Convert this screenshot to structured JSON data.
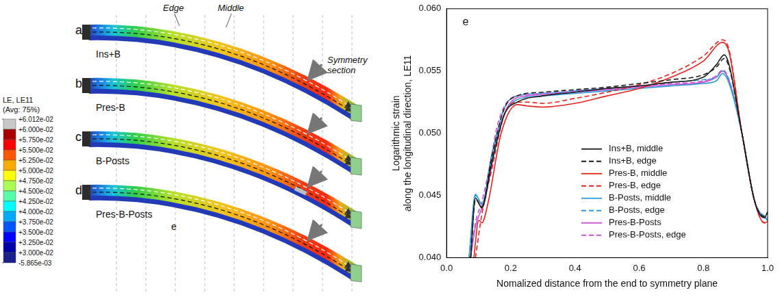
{
  "chart_data": {
    "type": "line",
    "panel_label": "e",
    "xlabel": "Nomalized distance from the end to symmetry plane",
    "ylabel": [
      "Logarithmic strain",
      "along the longitudinal direction, LE11"
    ],
    "xlim": [
      0,
      1
    ],
    "xticks": [
      {
        "value": 0,
        "label": "0.0"
      },
      {
        "value": 0.2,
        "label": "0.2"
      },
      {
        "value": 0.4,
        "label": "0.4"
      },
      {
        "value": 0.6,
        "label": "0.6"
      },
      {
        "value": 0.8,
        "label": "0.8"
      },
      {
        "value": 1,
        "label": "1.0"
      }
    ],
    "ylim": [
      0.04,
      0.06
    ],
    "yticks": [
      {
        "value": 0.04,
        "label": "0.040"
      },
      {
        "value": 0.045,
        "label": "0.045"
      },
      {
        "value": 0.05,
        "label": "0.050"
      },
      {
        "value": 0.055,
        "label": "0.055"
      },
      {
        "value": 0.06,
        "label": "0.060"
      }
    ],
    "grid": false,
    "legend": "bottom",
    "series": [
      {
        "name": "Ins+B, middle",
        "color": "#1a1a1a",
        "line_style": "solid",
        "x": [
          0.075,
          0.09,
          0.11,
          0.14,
          0.18,
          0.22,
          0.3,
          0.4,
          0.5,
          0.6,
          0.7,
          0.8,
          0.84,
          0.865,
          0.88,
          0.92,
          0.96,
          0.99,
          1.0
        ],
        "values": [
          0.04,
          0.0448,
          0.044,
          0.0475,
          0.0515,
          0.0525,
          0.053,
          0.0533,
          0.0536,
          0.0538,
          0.0541,
          0.0545,
          0.0555,
          0.0563,
          0.0555,
          0.05,
          0.0445,
          0.0432,
          0.0437
        ]
      },
      {
        "name": "Ins+B, edge",
        "color": "#1a1a1a",
        "line_style": "dashed",
        "x": [
          0.075,
          0.09,
          0.11,
          0.14,
          0.18,
          0.22,
          0.3,
          0.4,
          0.5,
          0.6,
          0.7,
          0.8,
          0.84,
          0.865,
          0.88,
          0.92,
          0.96,
          0.99,
          1.0
        ],
        "values": [
          0.04,
          0.0447,
          0.0441,
          0.048,
          0.052,
          0.053,
          0.0533,
          0.0535,
          0.0537,
          0.054,
          0.0543,
          0.0547,
          0.0553,
          0.056,
          0.0553,
          0.05,
          0.0445,
          0.0433,
          0.0436
        ]
      },
      {
        "name": "Pres-B, middle",
        "color": "#e3221b",
        "line_style": "solid",
        "x": [
          0.085,
          0.1,
          0.11,
          0.13,
          0.17,
          0.22,
          0.25,
          0.3,
          0.4,
          0.5,
          0.6,
          0.7,
          0.8,
          0.86,
          0.88,
          0.92,
          0.96,
          0.99,
          1.0
        ],
        "values": [
          0.04,
          0.043,
          0.0428,
          0.0445,
          0.05,
          0.0523,
          0.0522,
          0.0521,
          0.0524,
          0.053,
          0.0536,
          0.0545,
          0.0558,
          0.0573,
          0.0565,
          0.05,
          0.0445,
          0.0428,
          0.0429
        ]
      },
      {
        "name": "Pres-B, edge",
        "color": "#e3221b",
        "line_style": "dashed",
        "x": [
          0.09,
          0.11,
          0.14,
          0.18,
          0.22,
          0.25,
          0.3,
          0.4,
          0.5,
          0.6,
          0.7,
          0.8,
          0.86,
          0.88,
          0.92,
          0.96,
          0.99,
          1.0
        ],
        "values": [
          0.04,
          0.0435,
          0.047,
          0.0515,
          0.0525,
          0.0525,
          0.0524,
          0.0528,
          0.0533,
          0.0539,
          0.0548,
          0.0562,
          0.0575,
          0.0567,
          0.05,
          0.0445,
          0.0428,
          0.0429
        ]
      },
      {
        "name": "B-Posts, middle",
        "color": "#2e9bd6",
        "line_style": "solid",
        "x": [
          0.07,
          0.09,
          0.11,
          0.14,
          0.18,
          0.22,
          0.3,
          0.4,
          0.5,
          0.6,
          0.7,
          0.8,
          0.84,
          0.86,
          0.88,
          0.92,
          0.96,
          1.0
        ],
        "values": [
          0.04,
          0.0451,
          0.0443,
          0.0478,
          0.0515,
          0.0527,
          0.053,
          0.0532,
          0.0534,
          0.0536,
          0.0538,
          0.054,
          0.0542,
          0.0548,
          0.054,
          0.05,
          0.0445,
          0.043
        ]
      },
      {
        "name": "B-Posts, edge",
        "color": "#2e9bd6",
        "line_style": "dashed",
        "x": [
          0.07,
          0.09,
          0.11,
          0.14,
          0.18,
          0.22,
          0.3,
          0.4,
          0.5,
          0.6,
          0.7,
          0.8,
          0.84,
          0.86,
          0.88,
          0.92,
          0.96,
          1.0
        ],
        "values": [
          0.04,
          0.045,
          0.0443,
          0.0482,
          0.052,
          0.053,
          0.0532,
          0.0534,
          0.0536,
          0.0538,
          0.0541,
          0.0543,
          0.0545,
          0.055,
          0.0542,
          0.05,
          0.0445,
          0.0431
        ]
      },
      {
        "name": "Pres-B-Posts",
        "color": "#c94fd6",
        "line_style": "solid",
        "x": [
          0.075,
          0.09,
          0.11,
          0.13,
          0.16,
          0.2,
          0.25,
          0.3,
          0.4,
          0.5,
          0.6,
          0.7,
          0.8,
          0.84,
          0.86,
          0.88,
          0.92,
          0.96,
          1.0
        ],
        "values": [
          0.04,
          0.0425,
          0.044,
          0.046,
          0.05,
          0.0525,
          0.053,
          0.0531,
          0.0533,
          0.0535,
          0.0537,
          0.0539,
          0.0541,
          0.0545,
          0.055,
          0.0542,
          0.05,
          0.0445,
          0.043
        ]
      },
      {
        "name": "Pres-B-Posts, edge",
        "color": "#c94fd6",
        "line_style": "dashed",
        "x": [
          0.075,
          0.09,
          0.11,
          0.13,
          0.16,
          0.2,
          0.25,
          0.3,
          0.4,
          0.5,
          0.6,
          0.7,
          0.8,
          0.84,
          0.86,
          0.88,
          0.92,
          0.96,
          1.0
        ],
        "values": [
          0.04,
          0.0428,
          0.0445,
          0.0468,
          0.0508,
          0.0528,
          0.0531,
          0.0532,
          0.0534,
          0.0536,
          0.0538,
          0.054,
          0.0542,
          0.0546,
          0.0551,
          0.0543,
          0.05,
          0.0445,
          0.0431
        ]
      }
    ]
  },
  "contour_figure": {
    "color_bar": {
      "title": "LE, LE11",
      "subtitle": "(Avg: 75%)",
      "range": [
        -0.005865,
        0.06012
      ],
      "ticks": [
        {
          "value": 0.06012,
          "label": "+6.012e-02"
        },
        {
          "value": 0.06,
          "label": "+6.000e-02"
        },
        {
          "value": 0.0575,
          "label": "+5.750e-02"
        },
        {
          "value": 0.055,
          "label": "+5.500e-02"
        },
        {
          "value": 0.0525,
          "label": "+5.250e-02"
        },
        {
          "value": 0.05,
          "label": "+5.000e-02"
        },
        {
          "value": 0.0475,
          "label": "+4.750e-02"
        },
        {
          "value": 0.045,
          "label": "+4.500e-02"
        },
        {
          "value": 0.0425,
          "label": "+4.250e-02"
        },
        {
          "value": 0.04,
          "label": "+4.000e-02"
        },
        {
          "value": 0.0375,
          "label": "+3.750e-02"
        },
        {
          "value": 0.035,
          "label": "+3.500e-02"
        },
        {
          "value": 0.0325,
          "label": "+3.250e-02"
        },
        {
          "value": 0.03,
          "label": "+3.000e-02"
        },
        {
          "value": -0.005865,
          "label": "-5.865e-03"
        }
      ]
    },
    "panels": [
      {
        "letter": "a",
        "label": "Ins+B"
      },
      {
        "letter": "b",
        "label": "Pres-B"
      },
      {
        "letter": "c",
        "label": "B-Posts"
      },
      {
        "letter": "d",
        "label": "Pres-B-Posts"
      }
    ],
    "annotations": {
      "edge": "Edge",
      "middle": "Middle",
      "symmetry": "Symmetry section",
      "figure_label": "e"
    }
  }
}
